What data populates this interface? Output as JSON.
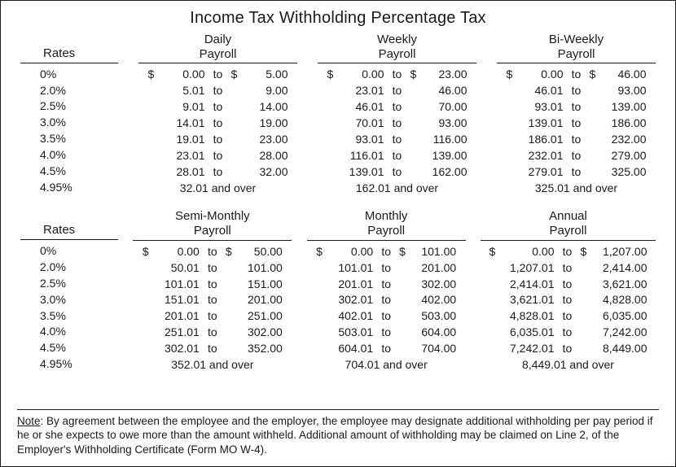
{
  "title": "Income Tax Withholding Percentage Tax",
  "rates_header": "Rates",
  "rates": [
    "0%",
    "2.0%",
    "2.5%",
    "3.0%",
    "3.5%",
    "4.0%",
    "4.5%",
    "4.95%"
  ],
  "top": {
    "columns": [
      {
        "header1": "Daily",
        "header2": "Payroll",
        "wide": false,
        "rows": [
          {
            "d1": "$",
            "from": "0.00",
            "d2": "$",
            "to": "5.00"
          },
          {
            "from": "5.01",
            "to": "9.00"
          },
          {
            "from": "9.01",
            "to": "14.00"
          },
          {
            "from": "14.01",
            "to": "19.00"
          },
          {
            "from": "19.01",
            "to": "23.00"
          },
          {
            "from": "23.01",
            "to": "28.00"
          },
          {
            "from": "28.01",
            "to": "32.00"
          }
        ],
        "over": "32.01 and over"
      },
      {
        "header1": "Weekly",
        "header2": "Payroll",
        "wide": false,
        "rows": [
          {
            "d1": "$",
            "from": "0.00",
            "d2": "$",
            "to": "23.00"
          },
          {
            "from": "23.01",
            "to": "46.00"
          },
          {
            "from": "46.01",
            "to": "70.00"
          },
          {
            "from": "70.01",
            "to": "93.00"
          },
          {
            "from": "93.01",
            "to": "116.00"
          },
          {
            "from": "116.01",
            "to": "139.00"
          },
          {
            "from": "139.01",
            "to": "162.00"
          }
        ],
        "over": "162.01 and over"
      },
      {
        "header1": "Bi-Weekly",
        "header2": "Payroll",
        "wide": false,
        "rows": [
          {
            "d1": "$",
            "from": "0.00",
            "d2": "$",
            "to": "46.00"
          },
          {
            "from": "46.01",
            "to": "93.00"
          },
          {
            "from": "93.01",
            "to": "139.00"
          },
          {
            "from": "139.01",
            "to": "186.00"
          },
          {
            "from": "186.01",
            "to": "232.00"
          },
          {
            "from": "232.01",
            "to": "279.00"
          },
          {
            "from": "279.01",
            "to": "325.00"
          }
        ],
        "over": "325.01 and over"
      }
    ]
  },
  "bottom": {
    "columns": [
      {
        "header1": "Semi-Monthly",
        "header2": "Payroll",
        "wide": false,
        "rows": [
          {
            "d1": "$",
            "from": "0.00",
            "d2": "$",
            "to": "50.00"
          },
          {
            "from": "50.01",
            "to": "101.00"
          },
          {
            "from": "101.01",
            "to": "151.00"
          },
          {
            "from": "151.01",
            "to": "201.00"
          },
          {
            "from": "201.01",
            "to": "251.00"
          },
          {
            "from": "251.01",
            "to": "302.00"
          },
          {
            "from": "302.01",
            "to": "352.00"
          }
        ],
        "over": "352.01 and over"
      },
      {
        "header1": "Monthly",
        "header2": "Payroll",
        "wide": false,
        "rows": [
          {
            "d1": "$",
            "from": "0.00",
            "d2": "$",
            "to": "101.00"
          },
          {
            "from": "101.01",
            "to": "201.00"
          },
          {
            "from": "201.01",
            "to": "302.00"
          },
          {
            "from": "302.01",
            "to": "402.00"
          },
          {
            "from": "402.01",
            "to": "503.00"
          },
          {
            "from": "503.01",
            "to": "604.00"
          },
          {
            "from": "604.01",
            "to": "704.00"
          }
        ],
        "over": "704.01 and over"
      },
      {
        "header1": "Annual",
        "header2": "Payroll",
        "wide": true,
        "rows": [
          {
            "d1": "$",
            "from": "0.00",
            "d2": "$",
            "to": "1,207.00"
          },
          {
            "from": "1,207.01",
            "to": "2,414.00"
          },
          {
            "from": "2,414.01",
            "to": "3,621.00"
          },
          {
            "from": "3,621.01",
            "to": "4,828.00"
          },
          {
            "from": "4,828.01",
            "to": "6,035.00"
          },
          {
            "from": "6,035.01",
            "to": "7,242.00"
          },
          {
            "from": "7,242.01",
            "to": "8,449.00"
          }
        ],
        "over": "8,449.01 and over"
      }
    ]
  },
  "note_label": "Note",
  "note_body": ": By agreement between the employee and the employer, the employee may designate additional withholding per pay period if he or she expects to owe more than the amount withheld.  Additional amount of withholding may be claimed on Line 2, of the Employer's Withholding Certificate (Form MO W-4).",
  "to_word": "to",
  "colors": {
    "text": "#1a1a1a",
    "background": "#ffffff",
    "rule": "#1a1a1a"
  },
  "font_family": "Optima / Candara / Segoe UI",
  "title_fontsize_pt": 15,
  "body_fontsize_pt": 10.5
}
